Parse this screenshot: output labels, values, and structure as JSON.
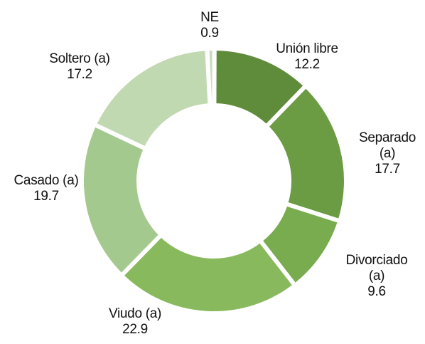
{
  "chart_data": {
    "type": "donut",
    "categories": [
      "NE",
      "Unión libre",
      "Separado (a)",
      "Divorciado (a)",
      "Viudo (a)",
      "Casado (a)",
      "Soltero (a)"
    ],
    "values": [
      0.9,
      12.2,
      17.7,
      9.6,
      22.9,
      19.7,
      17.2
    ],
    "colors": [
      "#c9dcc1",
      "#5f8c3b",
      "#6b9b43",
      "#79ab4f",
      "#88b95c",
      "#a4c98e",
      "#c1d9b1"
    ]
  }
}
